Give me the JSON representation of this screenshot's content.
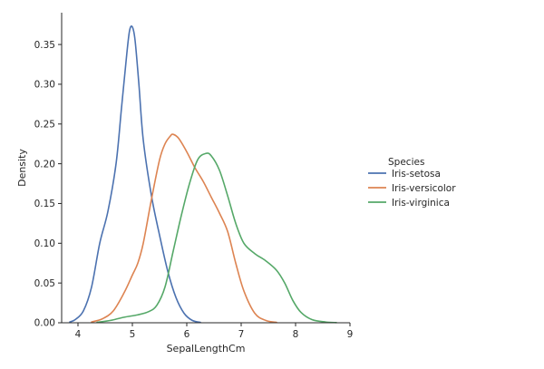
{
  "chart_data": {
    "type": "line",
    "xlabel": "SepalLengthCm",
    "ylabel": "Density",
    "xlim": [
      3.7,
      9.0
    ],
    "ylim": [
      0,
      0.39
    ],
    "xticks": [
      4,
      5,
      6,
      7,
      8,
      9
    ],
    "yticks": [
      0.0,
      0.05,
      0.1,
      0.15,
      0.2,
      0.25,
      0.3,
      0.35
    ],
    "grid": false,
    "legend": {
      "title": "Species",
      "placement": "right"
    },
    "series": [
      {
        "name": "Iris-setosa",
        "color": "#4c72b0",
        "x": [
          3.85,
          3.95,
          4.1,
          4.25,
          4.4,
          4.55,
          4.7,
          4.8,
          4.9,
          4.95,
          5.0,
          5.05,
          5.12,
          5.2,
          5.35,
          5.5,
          5.65,
          5.8,
          5.95,
          6.1,
          6.25
        ],
        "y": [
          0.001,
          0.004,
          0.015,
          0.045,
          0.1,
          0.14,
          0.2,
          0.27,
          0.34,
          0.368,
          0.372,
          0.355,
          0.3,
          0.23,
          0.16,
          0.11,
          0.065,
          0.032,
          0.012,
          0.003,
          0.0005
        ]
      },
      {
        "name": "Iris-versicolor",
        "color": "#dd8452",
        "x": [
          4.25,
          4.45,
          4.65,
          4.85,
          5.0,
          5.1,
          5.2,
          5.35,
          5.5,
          5.6,
          5.7,
          5.75,
          5.85,
          6.0,
          6.15,
          6.3,
          6.45,
          6.6,
          6.75,
          6.9,
          7.05,
          7.25,
          7.45,
          7.65
        ],
        "y": [
          0.001,
          0.005,
          0.015,
          0.038,
          0.06,
          0.075,
          0.1,
          0.155,
          0.205,
          0.225,
          0.235,
          0.237,
          0.232,
          0.215,
          0.195,
          0.178,
          0.158,
          0.138,
          0.115,
          0.075,
          0.04,
          0.012,
          0.003,
          0.0005
        ]
      },
      {
        "name": "Iris-virginica",
        "color": "#55a868",
        "x": [
          4.35,
          4.6,
          4.85,
          5.1,
          5.3,
          5.45,
          5.6,
          5.75,
          5.9,
          6.05,
          6.2,
          6.35,
          6.45,
          6.6,
          6.75,
          6.9,
          7.05,
          7.25,
          7.45,
          7.65,
          7.8,
          7.95,
          8.1,
          8.3,
          8.55,
          8.75
        ],
        "y": [
          0.0005,
          0.003,
          0.007,
          0.01,
          0.014,
          0.022,
          0.045,
          0.09,
          0.135,
          0.175,
          0.205,
          0.213,
          0.21,
          0.192,
          0.16,
          0.125,
          0.1,
          0.087,
          0.078,
          0.066,
          0.05,
          0.028,
          0.013,
          0.004,
          0.001,
          0.0002
        ]
      }
    ]
  }
}
